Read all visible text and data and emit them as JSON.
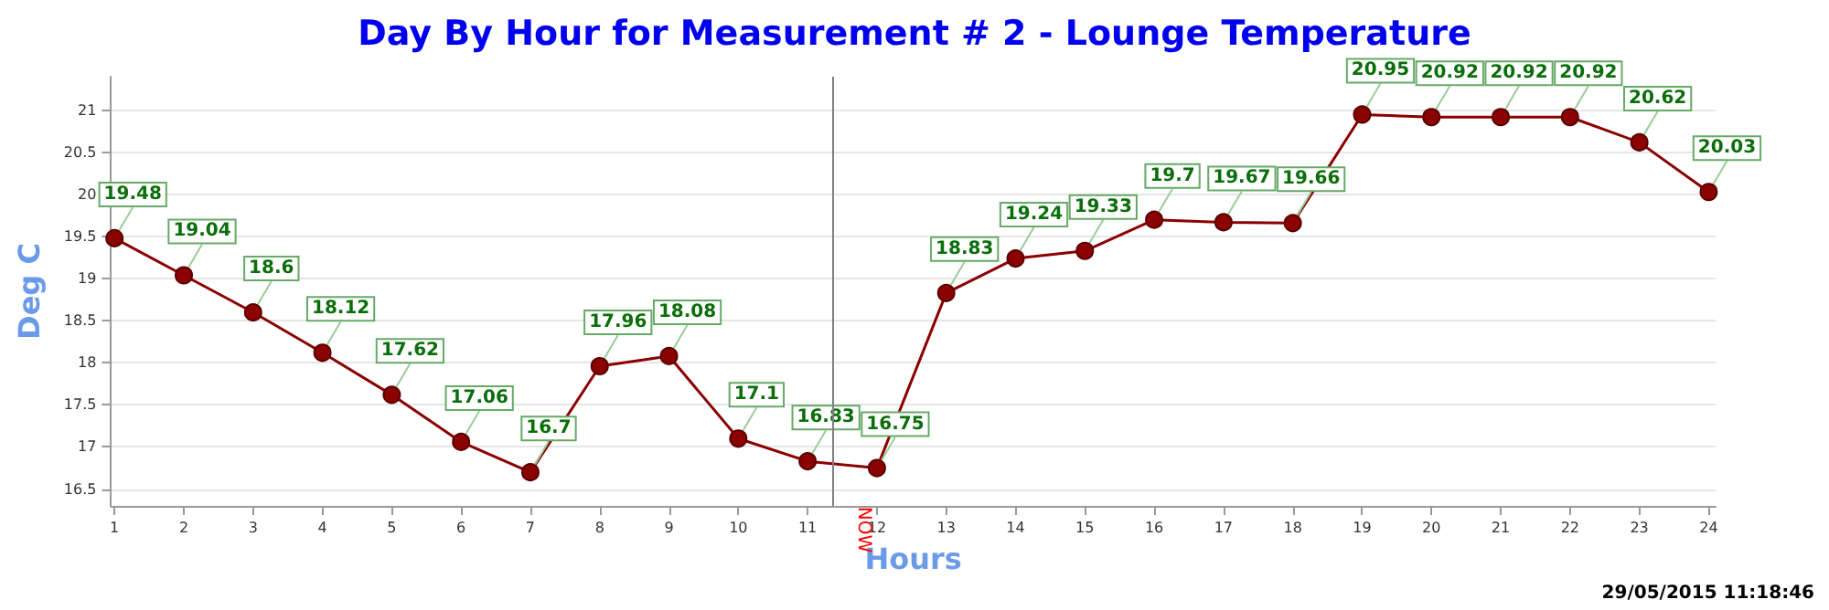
{
  "chart_data": {
    "type": "line",
    "title": "Day By Hour for Measurement # 2 - Lounge Temperature",
    "xlabel": "Hours",
    "ylabel": "Deg C",
    "x": [
      1,
      2,
      3,
      4,
      5,
      6,
      7,
      8,
      9,
      10,
      11,
      12,
      13,
      14,
      15,
      16,
      17,
      18,
      19,
      20,
      21,
      22,
      23,
      24
    ],
    "series": [
      {
        "color": "#8b0000",
        "values": [
          19.48,
          19.04,
          18.6,
          18.12,
          17.62,
          17.06,
          16.7,
          17.96,
          18.08,
          17.1,
          16.83,
          16.75,
          18.83,
          19.24,
          19.33,
          19.7,
          19.67,
          19.66,
          20.95,
          20.92,
          20.92,
          20.92,
          20.62,
          20.03
        ]
      }
    ],
    "xlim": [
      0.95,
      24.1
    ],
    "xticks": [
      1,
      2,
      3,
      4,
      5,
      6,
      7,
      8,
      9,
      10,
      11,
      12,
      13,
      14,
      15,
      16,
      17,
      18,
      19,
      20,
      21,
      22,
      23,
      24
    ],
    "ylim": [
      16.3,
      21.4
    ],
    "yticks": [
      16.5,
      17,
      17.5,
      18,
      18.5,
      19,
      19.5,
      20,
      20.5,
      21
    ],
    "grid": "y",
    "marker": "circle",
    "line_style": "solid",
    "data_labels": true,
    "ref_lines": [
      {
        "axis": "x",
        "value": 11.35,
        "label": "NOW",
        "color": "#808080"
      }
    ],
    "annotations": [
      "29/05/2015 11:18:46"
    ]
  }
}
